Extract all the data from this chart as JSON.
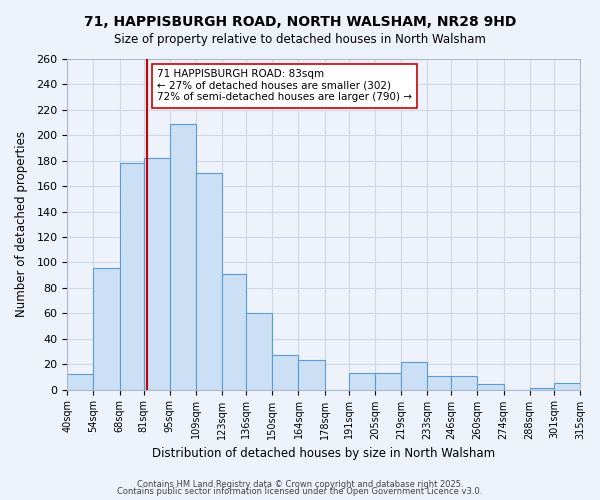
{
  "title": "71, HAPPISBURGH ROAD, NORTH WALSHAM, NR28 9HD",
  "subtitle": "Size of property relative to detached houses in North Walsham",
  "xlabel": "Distribution of detached houses by size in North Walsham",
  "ylabel": "Number of detached properties",
  "bin_labels": [
    "40sqm",
    "54sqm",
    "68sqm",
    "81sqm",
    "95sqm",
    "109sqm",
    "123sqm",
    "136sqm",
    "150sqm",
    "164sqm",
    "178sqm",
    "191sqm",
    "205sqm",
    "219sqm",
    "233sqm",
    "246sqm",
    "260sqm",
    "274sqm",
    "288sqm",
    "301sqm",
    "315sqm"
  ],
  "bin_edges": [
    40,
    54,
    68,
    81,
    95,
    109,
    123,
    136,
    150,
    164,
    178,
    191,
    205,
    219,
    233,
    246,
    260,
    274,
    288,
    301,
    315
  ],
  "bar_heights": [
    12,
    96,
    178,
    182,
    209,
    170,
    91,
    60,
    27,
    23,
    0,
    13,
    13,
    22,
    11,
    11,
    4,
    0,
    1,
    5
  ],
  "bar_color": "#cce0f5",
  "bar_edge_color": "#5b9bd5",
  "grid_color": "#d0d8e8",
  "background_color": "#eef3fb",
  "vline_x": 83,
  "vline_color": "#cc0000",
  "annotation_line1": "71 HAPPISBURGH ROAD: 83sqm",
  "annotation_line2": "← 27% of detached houses are smaller (302)",
  "annotation_line3": "72% of semi-detached houses are larger (790) →",
  "annotation_box_color": "#ffffff",
  "annotation_box_edge": "#cc0000",
  "ylim": [
    0,
    260
  ],
  "yticks": [
    0,
    20,
    40,
    60,
    80,
    100,
    120,
    140,
    160,
    180,
    200,
    220,
    240,
    260
  ],
  "footer1": "Contains HM Land Registry data © Crown copyright and database right 2025.",
  "footer2": "Contains public sector information licensed under the Open Government Licence v3.0."
}
